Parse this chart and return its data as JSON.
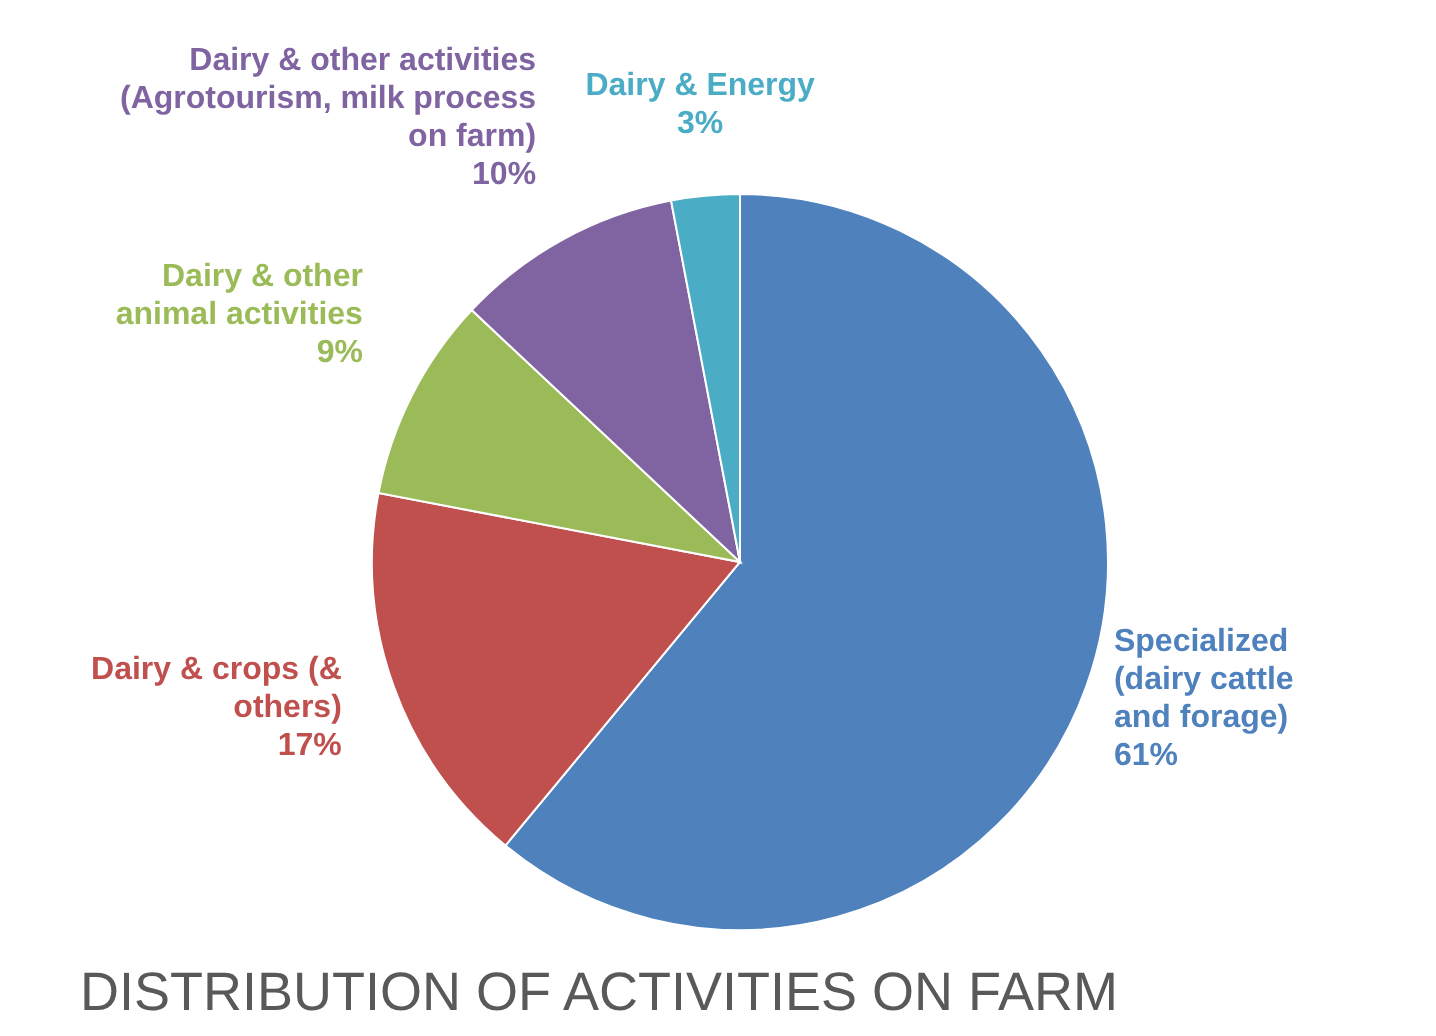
{
  "chart_data": {
    "type": "pie",
    "title": "DISTRIBUTION OF ACTIVITIES ON FARM",
    "categories": [
      "Specialized (dairy cattle and forage)",
      "Dairy & crops (& others)",
      "Dairy & other animal activities",
      "Dairy & other activities (Agrotourism, milk process on farm)",
      "Dairy & Energy"
    ],
    "values": [
      61,
      17,
      9,
      10,
      3
    ],
    "value_labels": [
      "61%",
      "17%",
      "9%",
      "10%",
      "3%"
    ],
    "colors": [
      "#4f81bd",
      "#c0504d",
      "#9bbb59",
      "#8064a2",
      "#4bacc6"
    ]
  }
}
